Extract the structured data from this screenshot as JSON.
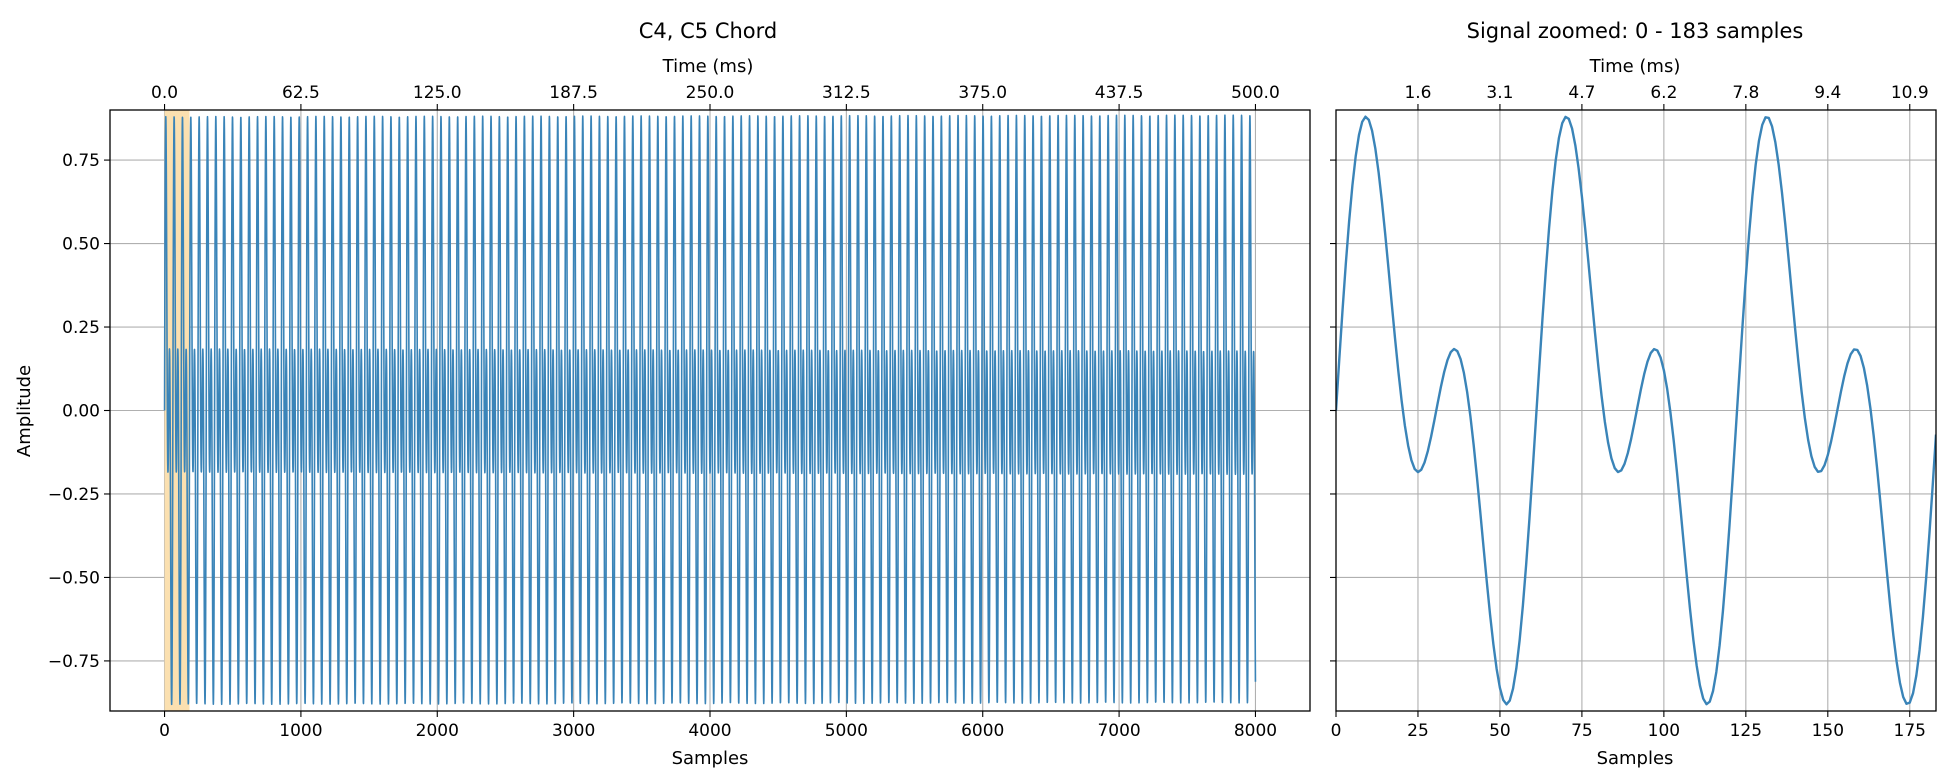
{
  "chart_data": [
    {
      "type": "line",
      "title": "C4, C5 Chord",
      "xlabel": "Samples",
      "ylabel": "Amplitude",
      "top_xlabel": "Time (ms)",
      "xlim": [
        -400,
        8400
      ],
      "ylim": [
        -0.9,
        0.9
      ],
      "x_ticks": [
        0,
        1000,
        2000,
        3000,
        4000,
        5000,
        6000,
        7000,
        8000
      ],
      "x_tick_labels": [
        "0",
        "1000",
        "2000",
        "3000",
        "4000",
        "5000",
        "6000",
        "7000",
        "8000"
      ],
      "y_ticks": [
        -0.75,
        -0.5,
        -0.25,
        0.0,
        0.25,
        0.5,
        0.75
      ],
      "y_tick_labels": [
        "−0.75",
        "−0.50",
        "−0.25",
        "0.00",
        "0.25",
        "0.50",
        "0.75"
      ],
      "top_ticks_samples": [
        0,
        1000,
        2000,
        3000,
        4000,
        5000,
        6000,
        7000,
        8000
      ],
      "top_tick_labels": [
        "0.0",
        "62.5",
        "125.0",
        "187.5",
        "250.0",
        "312.5",
        "375.0",
        "437.5",
        "500.0"
      ],
      "grid": true,
      "highlight_span": [
        0,
        183
      ],
      "highlight_color": "#fbe0b0",
      "series": [
        {
          "color": "#3a84b8",
          "signal": {
            "sample_rate": 16000,
            "num_samples": 8001,
            "components": [
              {
                "frequency_hz": 261.63,
                "amplitude": 0.5
              },
              {
                "frequency_hz": 523.25,
                "amplitude": 0.5
              }
            ]
          }
        }
      ]
    },
    {
      "type": "line",
      "title": "Signal zoomed: 0 - 183 samples",
      "xlabel": "Samples",
      "top_xlabel": "Time (ms)",
      "xlim": [
        0,
        183
      ],
      "ylim": [
        -0.9,
        0.9
      ],
      "x_ticks": [
        0,
        25,
        50,
        75,
        100,
        125,
        150,
        175
      ],
      "x_tick_labels": [
        "0",
        "25",
        "50",
        "75",
        "100",
        "125",
        "150",
        "175"
      ],
      "y_ticks": [
        -0.75,
        -0.5,
        -0.25,
        0.0,
        0.25,
        0.5,
        0.75
      ],
      "top_ticks_samples": [
        25,
        50,
        75,
        100,
        125,
        150,
        175
      ],
      "top_tick_labels": [
        "1.6",
        "3.1",
        "4.7",
        "6.2",
        "7.8",
        "9.4",
        "10.9"
      ],
      "grid": true,
      "series": [
        {
          "color": "#3a84b8",
          "signal": {
            "sample_rate": 16000,
            "num_samples": 184,
            "components": [
              {
                "frequency_hz": 261.63,
                "amplitude": 0.5
              },
              {
                "frequency_hz": 523.25,
                "amplitude": 0.5
              }
            ]
          }
        }
      ]
    }
  ]
}
